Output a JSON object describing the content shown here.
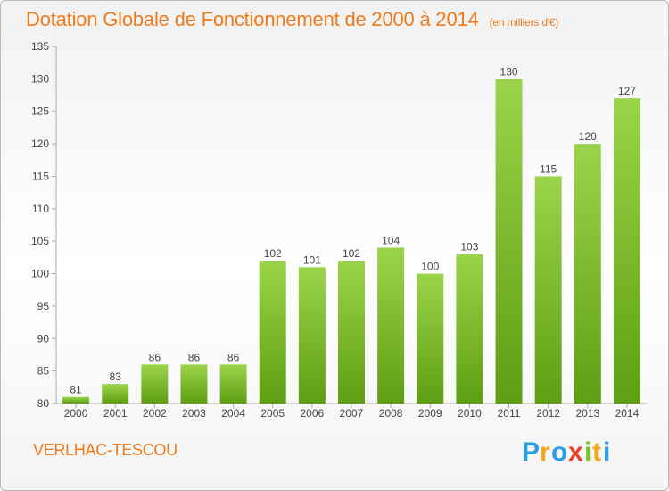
{
  "header": {
    "title": "Dotation Globale de Fonctionnement de 2000 à 2014",
    "unit_note": "(en milliers d'€)"
  },
  "footer": {
    "place_name": "VERLHAC-TESCOU",
    "brand": "Proxiti"
  },
  "chart_data": {
    "type": "bar",
    "categories": [
      "2000",
      "2001",
      "2002",
      "2003",
      "2004",
      "2005",
      "2006",
      "2007",
      "2008",
      "2009",
      "2010",
      "2011",
      "2012",
      "2013",
      "2014"
    ],
    "values": [
      81,
      83,
      86,
      86,
      86,
      102,
      101,
      102,
      104,
      100,
      103,
      130,
      115,
      120,
      127
    ],
    "value_labels": [
      "81",
      "83",
      "86",
      "86",
      "86",
      "102",
      "101",
      "102",
      "104",
      "100",
      "103",
      "130",
      "115",
      "120",
      "127"
    ],
    "ylim": [
      80,
      135
    ],
    "yticks": [
      "80",
      "85",
      "90",
      "95",
      "100",
      "105",
      "110",
      "115",
      "120",
      "125",
      "130",
      "135"
    ],
    "ytick_values": [
      80,
      85,
      90,
      95,
      100,
      105,
      110,
      115,
      120,
      125,
      130,
      135
    ],
    "grid": false,
    "bar_color": "#7cc22a"
  }
}
